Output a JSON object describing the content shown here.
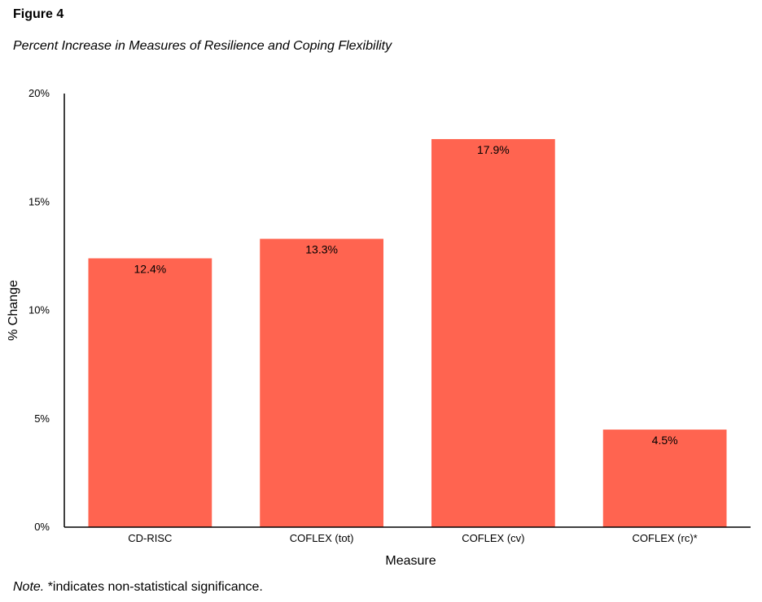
{
  "figure": {
    "label": "Figure 4",
    "title": "Percent Increase in Measures of Resilience and Coping Flexibility"
  },
  "note": {
    "prefix": "Note.",
    "text": " *indicates non-statistical significance."
  },
  "colors": {
    "bar": "#FF6450",
    "axis": "#000000",
    "text": "#000000"
  },
  "chart_data": {
    "type": "bar",
    "title": "",
    "xlabel": "Measure",
    "ylabel": "% Change",
    "categories": [
      "CD-RISC",
      "COFLEX (tot)",
      "COFLEX (cv)",
      "COFLEX (rc)*"
    ],
    "values": [
      12.4,
      13.3,
      17.9,
      4.5
    ],
    "data_labels": [
      "12.4%",
      "13.3%",
      "17.9%",
      "4.5%"
    ],
    "ylim": [
      0,
      20
    ],
    "yticks": [
      0,
      5,
      10,
      15,
      20
    ],
    "ytick_labels": [
      "0%",
      "5%",
      "10%",
      "15%",
      "20%"
    ],
    "grid": false,
    "legend": "none"
  }
}
